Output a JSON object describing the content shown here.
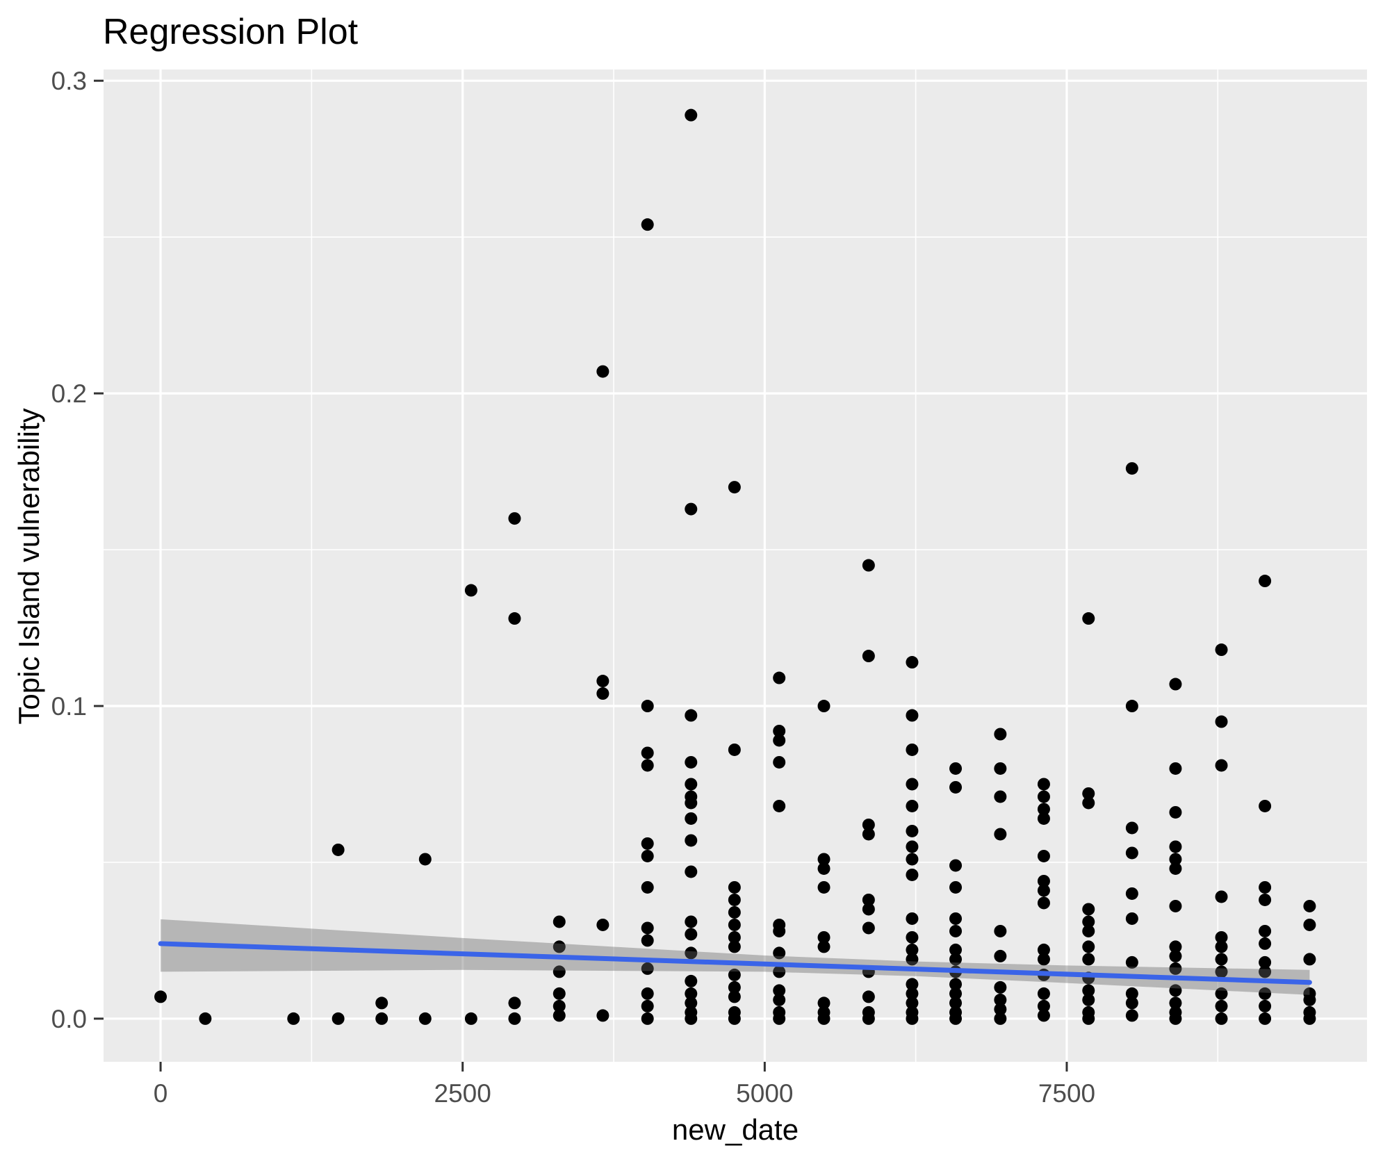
{
  "title": "Regression Plot",
  "chart_data": {
    "type": "scatter",
    "title": "Regression Plot",
    "xlabel": "new_date",
    "ylabel": "Topic Island vulnerability",
    "xlim": [
      -472,
      9985
    ],
    "ylim": [
      -0.0138,
      0.3036
    ],
    "x_major_ticks": [
      0,
      2500,
      5000,
      7500
    ],
    "x_tick_labels": [
      "0",
      "2500",
      "5000",
      "7500"
    ],
    "x_minor_ticks": [
      1250,
      3750,
      6250,
      8750
    ],
    "y_major_ticks": [
      0,
      0.1,
      0.2,
      0.3
    ],
    "y_tick_labels": [
      "0.0",
      "0.1",
      "0.2",
      "0.3"
    ],
    "y_minor_ticks": [
      0.05,
      0.15,
      0.25
    ],
    "legend_position": "none",
    "grid": "white major and minor gridlines on gray panel",
    "theme": {
      "panel_color": "#EBEBEB",
      "grid_color": "#FFFFFF",
      "point_color": "#000000",
      "smooth_line_color": "#3A64E8",
      "band_color": "#666666",
      "band_alpha": 0.4,
      "axis_text_color": "#4D4D4D",
      "tick_mark_color": "#333333",
      "title_color": "#000000"
    },
    "regression_line": {
      "x": [
        0,
        9510
      ],
      "y": [
        0.024,
        0.0116
      ]
    },
    "confidence_band": {
      "x": [
        0,
        2500,
        5000,
        6250,
        7500,
        9510
      ],
      "upper": [
        0.0318,
        0.0258,
        0.0202,
        0.0183,
        0.017,
        0.0156
      ],
      "lower": [
        0.015,
        0.0156,
        0.015,
        0.0136,
        0.0114,
        0.0076
      ]
    },
    "points": [
      [
        0,
        0.007
      ],
      [
        370,
        0
      ],
      [
        1100,
        0
      ],
      [
        1470,
        0.054
      ],
      [
        1470,
        0
      ],
      [
        1830,
        0.005
      ],
      [
        1830,
        0
      ],
      [
        2190,
        0.051
      ],
      [
        2190,
        0
      ],
      [
        2570,
        0.137
      ],
      [
        2570,
        0
      ],
      [
        2930,
        0.16
      ],
      [
        2930,
        0.128
      ],
      [
        2930,
        0.005
      ],
      [
        2930,
        0
      ],
      [
        3300,
        0.031
      ],
      [
        3300,
        0.023
      ],
      [
        3300,
        0.015
      ],
      [
        3300,
        0.008
      ],
      [
        3300,
        0.004
      ],
      [
        3300,
        0.001
      ],
      [
        3660,
        0.207
      ],
      [
        3660,
        0.108
      ],
      [
        3660,
        0.104
      ],
      [
        3660,
        0.03
      ],
      [
        3660,
        0.001
      ],
      [
        4030,
        0.254
      ],
      [
        4030,
        0.1
      ],
      [
        4030,
        0.085
      ],
      [
        4030,
        0.081
      ],
      [
        4030,
        0.056
      ],
      [
        4030,
        0.052
      ],
      [
        4030,
        0.042
      ],
      [
        4030,
        0.029
      ],
      [
        4030,
        0.025
      ],
      [
        4030,
        0.016
      ],
      [
        4030,
        0.008
      ],
      [
        4030,
        0.004
      ],
      [
        4030,
        0
      ],
      [
        4390,
        0.289
      ],
      [
        4390,
        0.163
      ],
      [
        4390,
        0.097
      ],
      [
        4390,
        0.082
      ],
      [
        4390,
        0.075
      ],
      [
        4390,
        0.071
      ],
      [
        4390,
        0.069
      ],
      [
        4390,
        0.064
      ],
      [
        4390,
        0.057
      ],
      [
        4390,
        0.047
      ],
      [
        4390,
        0.031
      ],
      [
        4390,
        0.027
      ],
      [
        4390,
        0.021
      ],
      [
        4390,
        0.012
      ],
      [
        4390,
        0.008
      ],
      [
        4390,
        0.005
      ],
      [
        4390,
        0.002
      ],
      [
        4390,
        0
      ],
      [
        4750,
        0.17
      ],
      [
        4750,
        0.086
      ],
      [
        4750,
        0.042
      ],
      [
        4750,
        0.038
      ],
      [
        4750,
        0.034
      ],
      [
        4750,
        0.03
      ],
      [
        4750,
        0.026
      ],
      [
        4750,
        0.023
      ],
      [
        4750,
        0.014
      ],
      [
        4750,
        0.01
      ],
      [
        4750,
        0.007
      ],
      [
        4750,
        0.002
      ],
      [
        4750,
        0
      ],
      [
        5120,
        0.109
      ],
      [
        5120,
        0.092
      ],
      [
        5120,
        0.089
      ],
      [
        5120,
        0.082
      ],
      [
        5120,
        0.068
      ],
      [
        5120,
        0.03
      ],
      [
        5120,
        0.028
      ],
      [
        5120,
        0.021
      ],
      [
        5120,
        0.015
      ],
      [
        5120,
        0.009
      ],
      [
        5120,
        0.006
      ],
      [
        5120,
        0.002
      ],
      [
        5120,
        0
      ],
      [
        5490,
        0.1
      ],
      [
        5490,
        0.051
      ],
      [
        5490,
        0.048
      ],
      [
        5490,
        0.042
      ],
      [
        5490,
        0.026
      ],
      [
        5490,
        0.023
      ],
      [
        5490,
        0.005
      ],
      [
        5490,
        0.002
      ],
      [
        5490,
        0
      ],
      [
        5860,
        0.145
      ],
      [
        5860,
        0.116
      ],
      [
        5860,
        0.062
      ],
      [
        5860,
        0.059
      ],
      [
        5860,
        0.038
      ],
      [
        5860,
        0.035
      ],
      [
        5860,
        0.029
      ],
      [
        5860,
        0.015
      ],
      [
        5860,
        0.007
      ],
      [
        5860,
        0.002
      ],
      [
        5860,
        0
      ],
      [
        6220,
        0.114
      ],
      [
        6220,
        0.097
      ],
      [
        6220,
        0.086
      ],
      [
        6220,
        0.075
      ],
      [
        6220,
        0.068
      ],
      [
        6220,
        0.06
      ],
      [
        6220,
        0.055
      ],
      [
        6220,
        0.051
      ],
      [
        6220,
        0.046
      ],
      [
        6220,
        0.032
      ],
      [
        6220,
        0.026
      ],
      [
        6220,
        0.022
      ],
      [
        6220,
        0.019
      ],
      [
        6220,
        0.011
      ],
      [
        6220,
        0.008
      ],
      [
        6220,
        0.005
      ],
      [
        6220,
        0.002
      ],
      [
        6220,
        0
      ],
      [
        6580,
        0.08
      ],
      [
        6580,
        0.074
      ],
      [
        6580,
        0.049
      ],
      [
        6580,
        0.042
      ],
      [
        6580,
        0.032
      ],
      [
        6580,
        0.028
      ],
      [
        6580,
        0.022
      ],
      [
        6580,
        0.019
      ],
      [
        6580,
        0.015
      ],
      [
        6580,
        0.011
      ],
      [
        6580,
        0.008
      ],
      [
        6580,
        0.005
      ],
      [
        6580,
        0.002
      ],
      [
        6580,
        0
      ],
      [
        6950,
        0.091
      ],
      [
        6950,
        0.08
      ],
      [
        6950,
        0.071
      ],
      [
        6950,
        0.059
      ],
      [
        6950,
        0.028
      ],
      [
        6950,
        0.02
      ],
      [
        6950,
        0.01
      ],
      [
        6950,
        0.006
      ],
      [
        6950,
        0.003
      ],
      [
        6950,
        0
      ],
      [
        7310,
        0.075
      ],
      [
        7310,
        0.071
      ],
      [
        7310,
        0.067
      ],
      [
        7310,
        0.064
      ],
      [
        7310,
        0.052
      ],
      [
        7310,
        0.044
      ],
      [
        7310,
        0.041
      ],
      [
        7310,
        0.037
      ],
      [
        7310,
        0.022
      ],
      [
        7310,
        0.019
      ],
      [
        7310,
        0.014
      ],
      [
        7310,
        0.008
      ],
      [
        7310,
        0.004
      ],
      [
        7310,
        0.001
      ],
      [
        7680,
        0.128
      ],
      [
        7680,
        0.072
      ],
      [
        7680,
        0.069
      ],
      [
        7680,
        0.035
      ],
      [
        7680,
        0.031
      ],
      [
        7680,
        0.028
      ],
      [
        7680,
        0.023
      ],
      [
        7680,
        0.019
      ],
      [
        7680,
        0.013
      ],
      [
        7680,
        0.009
      ],
      [
        7680,
        0.006
      ],
      [
        7680,
        0.002
      ],
      [
        7680,
        0
      ],
      [
        8040,
        0.176
      ],
      [
        8040,
        0.1
      ],
      [
        8040,
        0.061
      ],
      [
        8040,
        0.053
      ],
      [
        8040,
        0.04
      ],
      [
        8040,
        0.032
      ],
      [
        8040,
        0.018
      ],
      [
        8040,
        0.008
      ],
      [
        8040,
        0.005
      ],
      [
        8040,
        0.001
      ],
      [
        8400,
        0.107
      ],
      [
        8400,
        0.08
      ],
      [
        8400,
        0.066
      ],
      [
        8400,
        0.055
      ],
      [
        8400,
        0.051
      ],
      [
        8400,
        0.048
      ],
      [
        8400,
        0.036
      ],
      [
        8400,
        0.023
      ],
      [
        8400,
        0.02
      ],
      [
        8400,
        0.016
      ],
      [
        8400,
        0.009
      ],
      [
        8400,
        0.005
      ],
      [
        8400,
        0.002
      ],
      [
        8400,
        0
      ],
      [
        8780,
        0.118
      ],
      [
        8780,
        0.095
      ],
      [
        8780,
        0.081
      ],
      [
        8780,
        0.039
      ],
      [
        8780,
        0.026
      ],
      [
        8780,
        0.023
      ],
      [
        8780,
        0.019
      ],
      [
        8780,
        0.015
      ],
      [
        8780,
        0.008
      ],
      [
        8780,
        0.004
      ],
      [
        8780,
        0
      ],
      [
        9140,
        0.14
      ],
      [
        9140,
        0.068
      ],
      [
        9140,
        0.042
      ],
      [
        9140,
        0.038
      ],
      [
        9140,
        0.028
      ],
      [
        9140,
        0.024
      ],
      [
        9140,
        0.018
      ],
      [
        9140,
        0.015
      ],
      [
        9140,
        0.008
      ],
      [
        9140,
        0.004
      ],
      [
        9140,
        0
      ],
      [
        9510,
        0.036
      ],
      [
        9510,
        0.03
      ],
      [
        9510,
        0.019
      ],
      [
        9510,
        0.008
      ],
      [
        9510,
        0.006
      ],
      [
        9510,
        0.002
      ],
      [
        9510,
        0
      ]
    ]
  }
}
